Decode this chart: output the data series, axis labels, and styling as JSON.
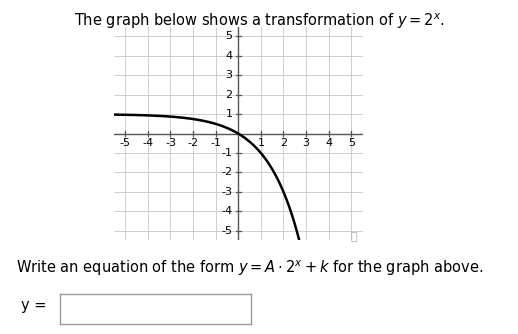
{
  "title": "The graph below shows a transformation of $y = 2^x$.",
  "equation_label": "Write an equation of the form $y = A \\cdot 2^x + k$ for the graph above.",
  "y_label": "y =",
  "xlim": [
    -5.5,
    5.5
  ],
  "ylim": [
    -5.5,
    5.5
  ],
  "xticks": [
    -5,
    -4,
    -3,
    -2,
    -1,
    1,
    2,
    3,
    4,
    5
  ],
  "yticks": [
    -5,
    -4,
    -3,
    -2,
    -1,
    1,
    2,
    3,
    4,
    5
  ],
  "xtick_labels": [
    "-5",
    "-4",
    "-3",
    "-2",
    "-1",
    "1",
    "2",
    "3",
    "4",
    "5"
  ],
  "ytick_labels": [
    "-5",
    "-4",
    "-3",
    "-2",
    "-1",
    "1",
    "2",
    "3",
    "4",
    "5"
  ],
  "curve_A": -1,
  "curve_k": 1,
  "curve_color": "#000000",
  "curve_linewidth": 1.8,
  "grid_color": "#c8c8c8",
  "axis_color": "#555555",
  "bg_color": "#ffffff",
  "font_color": "#000000",
  "title_fontsize": 10.5,
  "label_fontsize": 10.5,
  "tick_fontsize": 8,
  "magnifier_color": "#aaaaaa"
}
